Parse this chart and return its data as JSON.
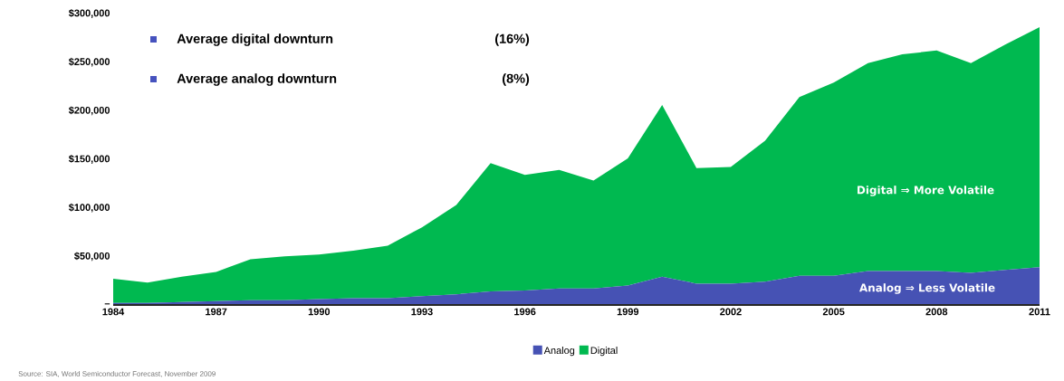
{
  "chart_data": {
    "type": "area",
    "stacked": true,
    "x": [
      1984,
      1985,
      1986,
      1987,
      1988,
      1989,
      1990,
      1991,
      1992,
      1993,
      1994,
      1995,
      1996,
      1997,
      1998,
      1999,
      2000,
      2001,
      2002,
      2003,
      2004,
      2005,
      2006,
      2007,
      2008,
      2009,
      2010,
      2011
    ],
    "series": [
      {
        "name": "Analog",
        "color": "#4652b4",
        "values": [
          2000,
          2000,
          3000,
          4000,
          5000,
          5000,
          6000,
          7000,
          7000,
          9000,
          11000,
          14000,
          15000,
          17000,
          17000,
          20000,
          29000,
          22000,
          22000,
          24000,
          30000,
          30000,
          35000,
          35000,
          35000,
          33000,
          36000,
          39000
        ]
      },
      {
        "name": "Digital",
        "color": "#00b950",
        "values": [
          25000,
          21000,
          26000,
          30000,
          42000,
          45000,
          46000,
          49000,
          54000,
          71000,
          92000,
          132000,
          119000,
          122000,
          111000,
          131000,
          177000,
          119000,
          120000,
          145000,
          184000,
          199000,
          214000,
          223000,
          227000,
          216000,
          232000,
          247000
        ]
      }
    ],
    "xlim": [
      1984,
      2011
    ],
    "ylim": [
      0,
      300000
    ],
    "xticks": [
      1984,
      1987,
      1990,
      1993,
      1996,
      1999,
      2002,
      2005,
      2008,
      2011
    ],
    "yticks": [
      {
        "value": 0,
        "label": "–"
      },
      {
        "value": 50000,
        "label": "$50,000"
      },
      {
        "value": 100000,
        "label": "$100,000"
      },
      {
        "value": 150000,
        "label": "$150,000"
      },
      {
        "value": 200000,
        "label": "$200,000"
      },
      {
        "value": 250000,
        "label": "$250,000"
      },
      {
        "value": 300000,
        "label": "$300,000"
      }
    ],
    "legend": "bottom",
    "annotations": [
      "Average digital downturn",
      "(16%)",
      "Average analog downturn",
      "(8%)",
      "Digital ⇒ More Volatile",
      "Analog ⇒ Less Volatile",
      "Source: SIA, World Semiconductor Forecast, November 2009"
    ]
  }
}
